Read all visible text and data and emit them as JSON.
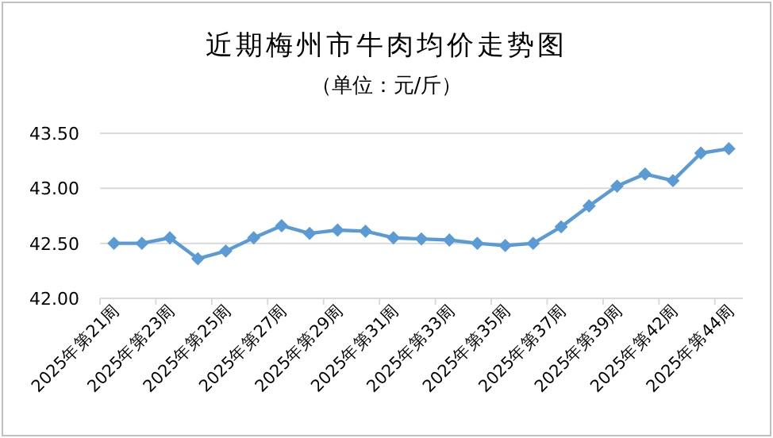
{
  "chart_data": {
    "type": "line",
    "title": "近期梅州市牛肉均价走势图",
    "subtitle": "（单位：元/斤）",
    "categories": [
      "2025年第21周",
      null,
      "2025年第23周",
      null,
      "2025年第25周",
      null,
      "2025年第27周",
      null,
      "2025年第29周",
      null,
      "2025年第31周",
      null,
      "2025年第33周",
      null,
      "2025年第35周",
      null,
      "2025年第37周",
      null,
      "2025年第39周",
      null,
      "2025年第42周",
      null,
      "2025年第44周"
    ],
    "series": [
      {
        "color": "#5b9bd5",
        "values": [
          42.5,
          42.5,
          42.55,
          42.36,
          42.43,
          42.55,
          42.66,
          42.59,
          42.62,
          42.61,
          42.55,
          42.54,
          42.53,
          42.5,
          42.48,
          42.5,
          42.65,
          42.84,
          43.02,
          43.13,
          43.07,
          43.32,
          43.36
        ]
      }
    ],
    "ylim": [
      42.0,
      43.5
    ],
    "yticks": [
      {
        "value": 42.0,
        "label": "42.00"
      },
      {
        "value": 42.5,
        "label": "42.50"
      },
      {
        "value": 43.0,
        "label": "43.00"
      },
      {
        "value": 43.5,
        "label": "43.50"
      }
    ],
    "grid": "y",
    "marker": "diamond",
    "line_style": "solid"
  }
}
